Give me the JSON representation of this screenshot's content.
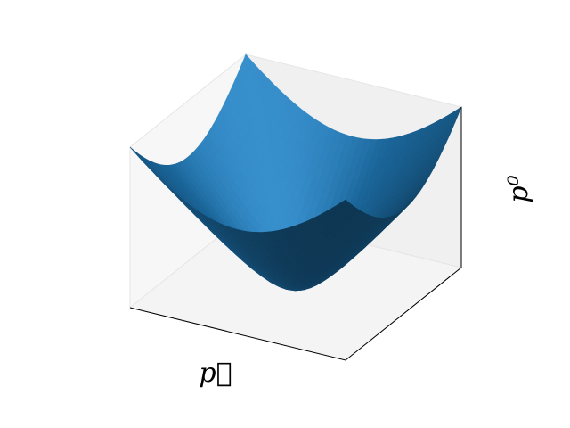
{
  "chart_data": {
    "type": "surface",
    "xlabel": "p⃗",
    "zlabel": "p⁰"
  }
}
